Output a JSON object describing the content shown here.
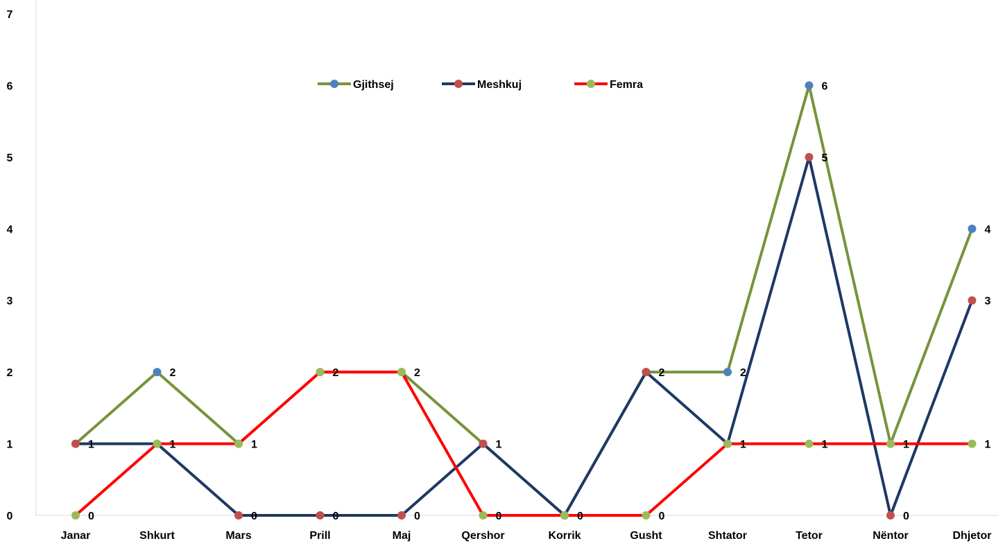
{
  "chart_data": {
    "type": "line",
    "categories": [
      "Janar",
      "Shkurt",
      "Mars",
      "Prill",
      "Maj",
      "Qershor",
      "Korrik",
      "Gusht",
      "Shtator",
      "Tetor",
      "Nëntor",
      "Dhjetor"
    ],
    "series": [
      {
        "name": "Gjithsej",
        "values": [
          1,
          2,
          1,
          2,
          2,
          1,
          0,
          2,
          2,
          6,
          1,
          4
        ],
        "line_color": "#77933C",
        "marker_color": "#4F81BD"
      },
      {
        "name": "Meshkuj",
        "values": [
          1,
          1,
          0,
          0,
          0,
          1,
          0,
          2,
          1,
          5,
          0,
          3
        ],
        "line_color": "#1F3864",
        "marker_color": "#C0504D"
      },
      {
        "name": "Femra",
        "values": [
          0,
          1,
          1,
          2,
          2,
          0,
          0,
          0,
          1,
          1,
          1,
          1
        ],
        "line_color": "#FF0000",
        "marker_color": "#9BBB59"
      }
    ],
    "yticks": [
      "0",
      "1",
      "2",
      "3",
      "4",
      "5",
      "6",
      "7"
    ],
    "ylim": [
      0,
      7
    ],
    "data_labels": [
      [
        "",
        "2",
        "",
        "",
        "2",
        "",
        "",
        "",
        "2",
        "6",
        "",
        "4"
      ],
      [
        "1",
        "",
        "0",
        "0",
        "0",
        "1",
        "0",
        "2",
        "",
        "5",
        "0",
        "3"
      ],
      [
        "0",
        "1",
        "1",
        "2",
        "",
        "0",
        "",
        "0",
        "1",
        "1",
        "1",
        "1"
      ]
    ],
    "title": "",
    "xlabel": "",
    "ylabel": "",
    "grid": false,
    "legend_position": "top-center"
  }
}
